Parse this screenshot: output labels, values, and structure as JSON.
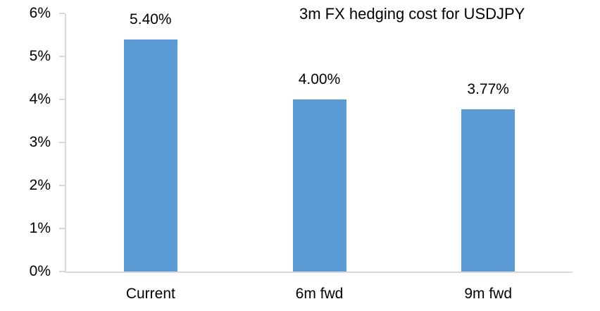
{
  "chart_data": {
    "type": "bar",
    "title": "3m FX hedging cost for USDJPY",
    "categories": [
      "Current",
      "6m fwd",
      "9m fwd"
    ],
    "values": [
      5.4,
      4.0,
      3.77
    ],
    "data_labels": [
      "5.40%",
      "4.00%",
      "3.77%"
    ],
    "y_ticks": [
      {
        "value": 0,
        "label": "0%"
      },
      {
        "value": 1,
        "label": "1%"
      },
      {
        "value": 2,
        "label": "2%"
      },
      {
        "value": 3,
        "label": "3%"
      },
      {
        "value": 4,
        "label": "4%"
      },
      {
        "value": 5,
        "label": "5%"
      },
      {
        "value": 6,
        "label": "6%"
      }
    ],
    "ylim": [
      0,
      6
    ],
    "xlabel": "",
    "ylabel": "",
    "grid": false,
    "legend_position": "none",
    "colors": {
      "bar": "#5B9BD5",
      "axis": "#D9D9D9",
      "text": "#000000",
      "background": "#FFFFFF"
    }
  }
}
